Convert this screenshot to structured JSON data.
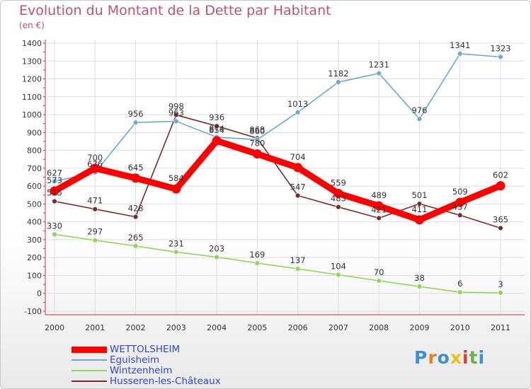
{
  "title": "Evolution du Montant de la Dette par Habitant",
  "unit": "(en €)",
  "brand": "Proxiti",
  "chart_data": {
    "type": "line",
    "x": [
      "2000",
      "2001",
      "2002",
      "2003",
      "2004",
      "2005",
      "2006",
      "2007",
      "2008",
      "2009",
      "2010",
      "2011"
    ],
    "yticks": [
      1400,
      1300,
      1200,
      1100,
      1000,
      900,
      800,
      700,
      600,
      500,
      400,
      300,
      200,
      100,
      0,
      -100
    ],
    "ylim": [
      -100,
      1400
    ],
    "grid": true,
    "legend_position": "bottom-left",
    "series": [
      {
        "name": "WETTOLSHEIM",
        "color": "#ff0000",
        "values": [
          573,
          700,
          645,
          584,
          854,
          780,
          704,
          559,
          489,
          411,
          509,
          602
        ]
      },
      {
        "name": "Eguisheim",
        "color": "#6ea6d6",
        "values": [
          627,
          676,
          956,
          963,
          874,
          860,
          1013,
          1182,
          1231,
          976,
          1341,
          1323
        ]
      },
      {
        "name": "Wintzenheim",
        "color": "#8fd65c",
        "values": [
          330,
          297,
          265,
          231,
          203,
          169,
          137,
          104,
          70,
          38,
          6,
          3
        ]
      },
      {
        "name": "Husseren-les-Châteaux",
        "color": "#7a2a2a",
        "values": [
          515,
          471,
          428,
          998,
          936,
          868,
          547,
          483,
          421,
          501,
          437,
          365
        ]
      }
    ]
  }
}
